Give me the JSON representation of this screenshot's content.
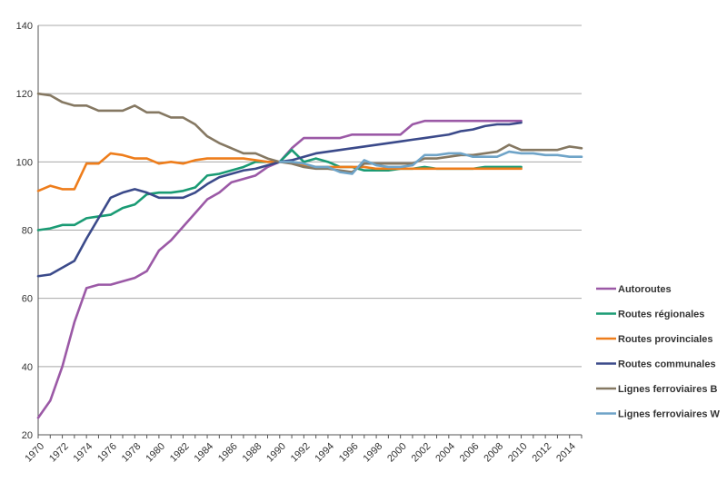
{
  "chart_data": {
    "type": "line",
    "title": "",
    "xlabel": "",
    "ylabel": "",
    "xlim": [
      1970,
      2015
    ],
    "ylim": [
      20,
      140
    ],
    "yticks": [
      20,
      40,
      60,
      80,
      100,
      120,
      140
    ],
    "xticks": [
      1970,
      1972,
      1974,
      1976,
      1978,
      1980,
      1982,
      1984,
      1986,
      1988,
      1990,
      1992,
      1994,
      1996,
      1998,
      2000,
      2002,
      2004,
      2006,
      2008,
      2010,
      2012,
      2014
    ],
    "grid": "horizontal",
    "legend_position": "right",
    "series": [
      {
        "name": "Autoroutes",
        "color": "#9b59a6",
        "x": [
          1970,
          1971,
          1972,
          1973,
          1974,
          1975,
          1976,
          1977,
          1978,
          1979,
          1980,
          1981,
          1982,
          1983,
          1984,
          1985,
          1986,
          1987,
          1988,
          1989,
          1990,
          1991,
          1992,
          1993,
          1994,
          1995,
          1996,
          1997,
          1998,
          1999,
          2000,
          2001,
          2002,
          2003,
          2004,
          2005,
          2006,
          2007,
          2008,
          2009,
          2010
        ],
        "y": [
          25,
          30,
          40,
          53,
          63,
          64,
          64,
          65,
          66,
          68,
          74,
          77,
          81,
          85,
          89,
          91,
          94,
          95,
          96,
          98.5,
          100,
          104,
          107,
          107,
          107,
          107,
          108,
          108,
          108,
          108,
          108,
          111,
          112,
          112,
          112,
          112,
          112,
          112,
          112,
          112,
          112
        ]
      },
      {
        "name": "Routes régionales",
        "color": "#1a9b74",
        "x": [
          1970,
          1971,
          1972,
          1973,
          1974,
          1975,
          1976,
          1977,
          1978,
          1979,
          1980,
          1981,
          1982,
          1983,
          1984,
          1985,
          1986,
          1987,
          1988,
          1989,
          1990,
          1991,
          1992,
          1993,
          1994,
          1995,
          1996,
          1997,
          1998,
          1999,
          2000,
          2001,
          2002,
          2003,
          2004,
          2005,
          2006,
          2007,
          2008,
          2009,
          2010
        ],
        "y": [
          80,
          80.5,
          81.5,
          81.5,
          83.5,
          84,
          84.5,
          86.5,
          87.5,
          90.5,
          91,
          91,
          91.5,
          92.5,
          96,
          96.5,
          97.5,
          98.5,
          100,
          100,
          100,
          103.5,
          100,
          101,
          100,
          98.5,
          98.5,
          97.5,
          97.5,
          97.5,
          98,
          98,
          98.5,
          98,
          98,
          98,
          98,
          98.5,
          98.5,
          98.5,
          98.5
        ]
      },
      {
        "name": "Routes provinciales",
        "color": "#ee7d1b",
        "x": [
          1970,
          1971,
          1972,
          1973,
          1974,
          1975,
          1976,
          1977,
          1978,
          1979,
          1980,
          1981,
          1982,
          1983,
          1984,
          1985,
          1986,
          1987,
          1988,
          1989,
          1990,
          1991,
          1992,
          1993,
          1994,
          1995,
          1996,
          1997,
          1998,
          1999,
          2000,
          2001,
          2002,
          2003,
          2004,
          2005,
          2006,
          2007,
          2008,
          2009,
          2010
        ],
        "y": [
          91.5,
          93,
          92,
          92,
          99.5,
          99.5,
          102.5,
          102,
          101,
          101,
          99.5,
          100,
          99.5,
          100.5,
          101,
          101,
          101,
          101,
          100.5,
          100,
          100,
          100,
          99,
          98.5,
          98.5,
          98.5,
          98.5,
          98.5,
          98,
          98,
          98,
          98,
          98,
          98,
          98,
          98,
          98,
          98,
          98,
          98,
          98
        ]
      },
      {
        "name": "Routes communales",
        "color": "#3b4a8a",
        "x": [
          1970,
          1971,
          1972,
          1973,
          1974,
          1975,
          1976,
          1977,
          1978,
          1979,
          1980,
          1981,
          1982,
          1983,
          1984,
          1985,
          1986,
          1987,
          1988,
          1989,
          1990,
          1991,
          1992,
          1993,
          1994,
          1995,
          1996,
          1997,
          1998,
          1999,
          2000,
          2001,
          2002,
          2003,
          2004,
          2005,
          2006,
          2007,
          2008,
          2009,
          2010
        ],
        "y": [
          66.5,
          67,
          69,
          71,
          77.5,
          83.5,
          89.5,
          91,
          92,
          91,
          89.5,
          89.5,
          89.5,
          91,
          93.5,
          95.5,
          96.5,
          97.5,
          98,
          99,
          100,
          100.5,
          101.5,
          102.5,
          103,
          103.5,
          104,
          104.5,
          105,
          105.5,
          106,
          106.5,
          107,
          107.5,
          108,
          109,
          109.5,
          110.5,
          111,
          111,
          111.5
        ]
      },
      {
        "name": "Lignes ferroviaires B",
        "color": "#857862",
        "x": [
          1970,
          1971,
          1972,
          1973,
          1974,
          1975,
          1976,
          1977,
          1978,
          1979,
          1980,
          1981,
          1982,
          1983,
          1984,
          1985,
          1986,
          1987,
          1988,
          1989,
          1990,
          1991,
          1992,
          1993,
          1994,
          1995,
          1996,
          1997,
          1998,
          1999,
          2000,
          2001,
          2002,
          2003,
          2004,
          2005,
          2006,
          2007,
          2008,
          2009,
          2010,
          2011,
          2012,
          2013,
          2014,
          2015
        ],
        "y": [
          120,
          119.5,
          117.5,
          116.5,
          116.5,
          115,
          115,
          115,
          116.5,
          114.5,
          114.5,
          113,
          113,
          111,
          107.5,
          105.5,
          104,
          102.5,
          102.5,
          101,
          100,
          99.5,
          98.5,
          98,
          98,
          97.5,
          97,
          99.5,
          99.5,
          99.5,
          99.5,
          99.5,
          101,
          101,
          101.5,
          102,
          102,
          102.5,
          103,
          105,
          103.5,
          103.5,
          103.5,
          103.5,
          104.5,
          104
        ]
      },
      {
        "name": "Lignes ferroviaires W",
        "color": "#6fa4c8",
        "x": [
          1990,
          1991,
          1992,
          1993,
          1994,
          1995,
          1996,
          1997,
          1998,
          1999,
          2000,
          2001,
          2002,
          2003,
          2004,
          2005,
          2006,
          2007,
          2008,
          2009,
          2010,
          2011,
          2012,
          2013,
          2014,
          2015
        ],
        "y": [
          100,
          100,
          99.5,
          98.5,
          98.5,
          97,
          96.5,
          100.5,
          99,
          98.5,
          98.5,
          99,
          102,
          102,
          102.5,
          102.5,
          101.5,
          101.5,
          101.5,
          103,
          102.5,
          102.5,
          102,
          102,
          101.5,
          101.5
        ]
      }
    ]
  }
}
